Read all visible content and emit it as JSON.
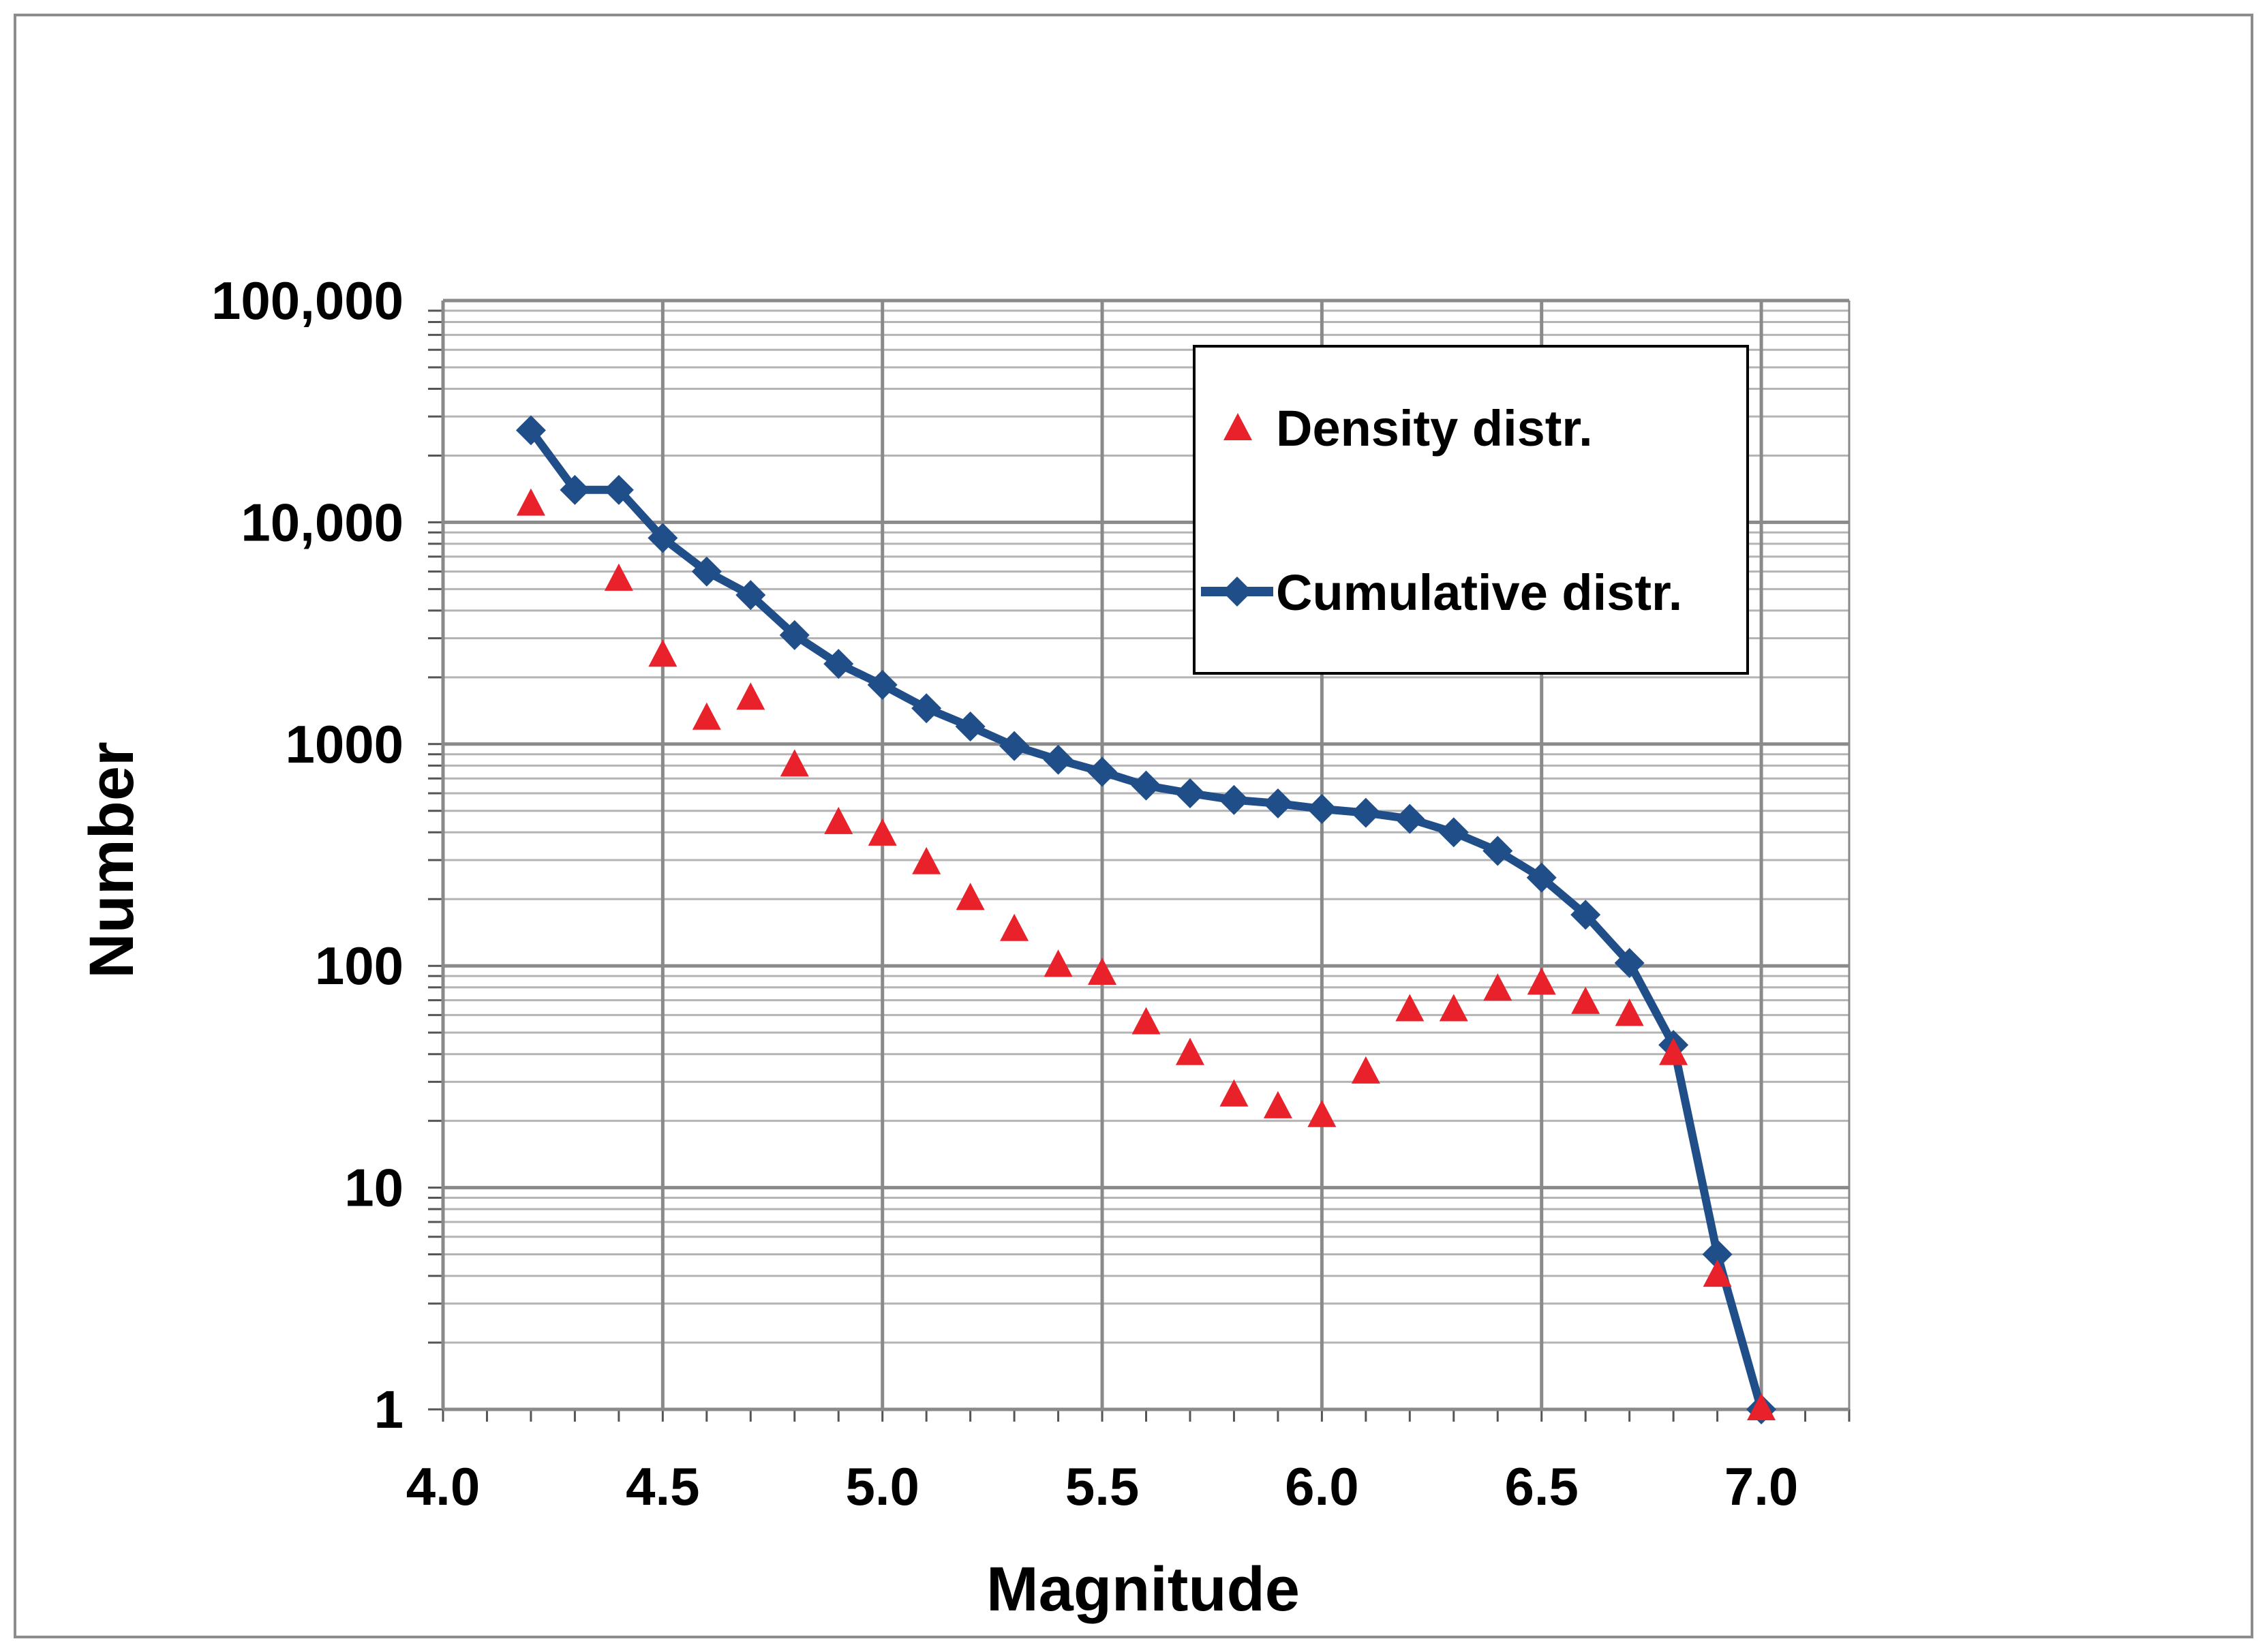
{
  "chart_data": {
    "type": "scatter",
    "title": "",
    "xlabel": "Magnitude",
    "ylabel": "Number",
    "xscale": "linear",
    "yscale": "log",
    "xlim": [
      4.0,
      7.2
    ],
    "ylim": [
      1,
      100000
    ],
    "grid": true,
    "xticks": [
      4.0,
      4.5,
      5.0,
      5.5,
      6.0,
      6.5,
      7.0
    ],
    "xtick_labels": [
      "4.0",
      "4.5",
      "5.0",
      "5.5",
      "6.0",
      "6.5",
      "7.0"
    ],
    "yticks": [
      1,
      10,
      100,
      1000,
      10000,
      100000
    ],
    "ytick_labels": [
      "1",
      "10",
      "100",
      "1000",
      "10,000",
      "100,000"
    ],
    "legend_position": "top-right",
    "series": [
      {
        "name": "Density distr.",
        "style": "markers",
        "marker": "triangle",
        "color": "#e8212a",
        "x": [
          4.2,
          4.4,
          4.5,
          4.6,
          4.7,
          4.8,
          4.9,
          5.0,
          5.1,
          5.2,
          5.3,
          5.4,
          5.5,
          5.6,
          5.7,
          5.8,
          5.9,
          6.0,
          6.1,
          6.2,
          6.3,
          6.4,
          6.5,
          6.6,
          6.7,
          6.8,
          6.9,
          7.0
        ],
        "y": [
          12000,
          5500,
          2500,
          1300,
          1600,
          800,
          440,
          390,
          290,
          200,
          145,
          100,
          92,
          55,
          40,
          26,
          23,
          21,
          33,
          63,
          63,
          78,
          83,
          68,
          60,
          40,
          4,
          1
        ]
      },
      {
        "name": "Cumulative distr.",
        "style": "line+markers",
        "marker": "diamond",
        "color": "#1f4e89",
        "x": [
          4.2,
          4.3,
          4.4,
          4.5,
          4.6,
          4.7,
          4.8,
          4.9,
          5.0,
          5.1,
          5.2,
          5.3,
          5.4,
          5.5,
          5.6,
          5.7,
          5.8,
          5.9,
          6.0,
          6.1,
          6.2,
          6.3,
          6.4,
          6.5,
          6.6,
          6.7,
          6.8,
          6.9,
          7.0
        ],
        "y": [
          26000,
          14000,
          14000,
          8500,
          6000,
          4700,
          3100,
          2300,
          1850,
          1450,
          1200,
          980,
          850,
          750,
          650,
          600,
          560,
          540,
          510,
          490,
          460,
          400,
          330,
          250,
          170,
          103,
          44,
          5,
          1
        ]
      }
    ]
  }
}
